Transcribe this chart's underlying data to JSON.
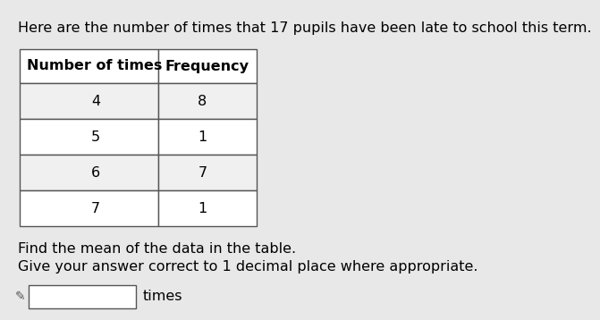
{
  "title": "Here are the number of times that 17 pupils have been late to school this term.",
  "col1_header": "Number of times",
  "col2_header": "Frequency",
  "rows": [
    [
      "4",
      "8"
    ],
    [
      "5",
      "1"
    ],
    [
      "6",
      "7"
    ],
    [
      "7",
      "1"
    ]
  ],
  "instruction_line1": "Find the mean of the data in the table.",
  "instruction_line2": "Give your answer correct to 1 decimal place where appropriate.",
  "answer_label": "times",
  "bg_color": "#e8e8e8",
  "font_size_title": 11.5,
  "font_size_table": 11.5,
  "font_size_instruction": 11.5
}
